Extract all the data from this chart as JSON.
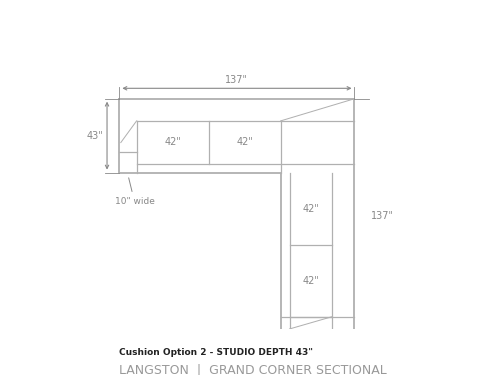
{
  "title_line1": "Cushion Option 2 - STUDIO DEPTH 43\"",
  "title_line2": "LANGSTON  |  GRAND CORNER SECTIONAL",
  "dim_top": "137\"",
  "dim_left": "43\"",
  "dim_right": "137\"",
  "dim_cushion_h1": "42\"",
  "dim_cushion_h2": "42\"",
  "dim_cushion_v1": "42\"",
  "dim_cushion_v2": "42\"",
  "arm_label": "10\" wide",
  "line_color": "#b0b0b0",
  "bg_color": "#ffffff",
  "text_color": "#666666",
  "title1_color": "#222222",
  "title2_color": "#999999",
  "dim_arrow_color": "#888888"
}
